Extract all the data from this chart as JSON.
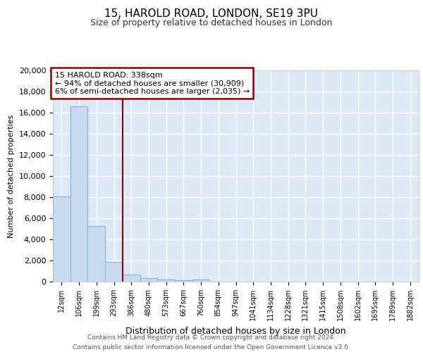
{
  "title1": "15, HAROLD ROAD, LONDON, SE19 3PU",
  "title2": "Size of property relative to detached houses in London",
  "xlabel": "Distribution of detached houses by size in London",
  "ylabel": "Number of detached properties",
  "annotation_title": "15 HAROLD ROAD: 338sqm",
  "annotation_line1": "← 94% of detached houses are smaller (30,909)",
  "annotation_line2": "6% of semi-detached houses are larger (2,035) →",
  "footer1": "Contains HM Land Registry data © Crown copyright and database right 2024.",
  "footer2": "Contains public sector information licensed under the Open Government Licence v3.0.",
  "categories": [
    "12sqm",
    "106sqm",
    "199sqm",
    "293sqm",
    "386sqm",
    "480sqm",
    "573sqm",
    "667sqm",
    "760sqm",
    "854sqm",
    "947sqm",
    "1041sqm",
    "1134sqm",
    "1228sqm",
    "1321sqm",
    "1415sqm",
    "1508sqm",
    "1602sqm",
    "1695sqm",
    "1789sqm",
    "1882sqm"
  ],
  "values": [
    8100,
    16600,
    5300,
    1850,
    680,
    310,
    190,
    130,
    180,
    0,
    0,
    0,
    0,
    0,
    0,
    0,
    0,
    0,
    0,
    0,
    0
  ],
  "bar_color": "#c8daf0",
  "bar_edge_color": "#7aaed4",
  "vline_color": "#8b0000",
  "box_color": "#8b0000",
  "bg_color": "#dce8f5",
  "grid_color": "#ffffff",
  "ylim": [
    0,
    20000
  ],
  "yticks": [
    0,
    2000,
    4000,
    6000,
    8000,
    10000,
    12000,
    14000,
    16000,
    18000,
    20000
  ],
  "vline_pos": 3.5
}
